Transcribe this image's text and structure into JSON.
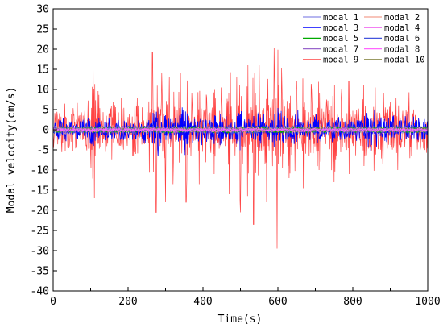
{
  "chart_data": {
    "type": "line",
    "xlabel": "Time(s)",
    "ylabel": "Modal velocity(cm/s)",
    "xlim": [
      0,
      1000
    ],
    "ylim": [
      -40,
      30
    ],
    "xticks": [
      0,
      200,
      400,
      600,
      800,
      1000
    ],
    "yticks": [
      -40,
      -35,
      -30,
      -25,
      -20,
      -15,
      -10,
      -5,
      0,
      5,
      10,
      15,
      20,
      25,
      30
    ],
    "grid": false,
    "legend_position": "top-right",
    "legend_columns": 2,
    "series": [
      {
        "name": "modal 1",
        "color": "#8a8ae6",
        "amplitude": 0.4,
        "x": [
          0,
          1000
        ],
        "y": [
          0,
          0
        ]
      },
      {
        "name": "modal 2",
        "color": "#f4a090",
        "amplitude": 0.6,
        "x": [
          0,
          1000
        ],
        "y": [
          0,
          0
        ]
      },
      {
        "name": "modal 3",
        "color": "#0000ff",
        "amplitude": 2.5,
        "x": [
          0,
          50,
          100,
          150,
          200,
          250,
          280,
          300,
          350,
          400,
          450,
          500,
          550,
          600,
          650,
          700,
          750,
          800,
          850,
          900,
          950,
          1000
        ],
        "y": [
          0,
          1.5,
          -3,
          1.8,
          -1.2,
          2.0,
          -6.5,
          3.6,
          -5.0,
          2.4,
          -3.5,
          4.0,
          -4.5,
          5.4,
          -3.0,
          2.5,
          -2.0,
          1.8,
          -3.8,
          2.2,
          -2.0,
          1.0
        ]
      },
      {
        "name": "modal 4",
        "color": "#ee55ee",
        "amplitude": 0.5,
        "x": [
          0,
          1000
        ],
        "y": [
          0,
          0
        ]
      },
      {
        "name": "modal 5",
        "color": "#00aa00",
        "amplitude": 0.8,
        "x": [
          0,
          1000
        ],
        "y": [
          0,
          0
        ]
      },
      {
        "name": "modal 6",
        "color": "#4455dd",
        "amplitude": 1.0,
        "x": [
          0,
          1000
        ],
        "y": [
          0,
          0
        ]
      },
      {
        "name": "modal 7",
        "color": "#9966cc",
        "amplitude": 0.3,
        "x": [
          0,
          1000
        ],
        "y": [
          0,
          0
        ]
      },
      {
        "name": "modal 8",
        "color": "#ff66ff",
        "amplitude": 0.3,
        "x": [
          0,
          1000
        ],
        "y": [
          0,
          0
        ]
      },
      {
        "name": "modal 9",
        "color": "#ff4444",
        "amplitude": 5.0,
        "x": [
          0,
          40,
          60,
          80,
          100,
          110,
          120,
          140,
          160,
          180,
          200,
          220,
          250,
          265,
          275,
          290,
          300,
          310,
          320,
          340,
          355,
          370,
          390,
          410,
          430,
          450,
          470,
          490,
          500,
          520,
          535,
          550,
          570,
          590,
          598,
          610,
          630,
          650,
          670,
          690,
          710,
          730,
          750,
          770,
          790,
          810,
          830,
          860,
          880,
          900,
          920,
          950,
          980,
          1000
        ],
        "y": [
          0,
          3.0,
          -4.5,
          3.5,
          -6.0,
          -17.0,
          9.6,
          -5.5,
          7.0,
          -4.0,
          3.2,
          -6.0,
          2.5,
          19.2,
          -20.5,
          14.0,
          -18.0,
          13.0,
          -13.5,
          14.2,
          -18.0,
          9.0,
          -13.5,
          8.0,
          -11.0,
          10.5,
          -16.0,
          13.0,
          -20.5,
          16.0,
          -23.5,
          16.0,
          -18.0,
          20.2,
          -29.5,
          15.2,
          -12.0,
          12.0,
          -14.0,
          10.0,
          -10.0,
          7.5,
          -13.0,
          10.0,
          -11.0,
          5.0,
          -9.0,
          10.5,
          -8.5,
          7.0,
          -10.0,
          9.3,
          -5.0,
          3.0
        ]
      },
      {
        "name": "modal 10",
        "color": "#7a7a30",
        "amplitude": 0.4,
        "x": [
          0,
          1000
        ],
        "y": [
          0,
          0
        ]
      }
    ]
  }
}
